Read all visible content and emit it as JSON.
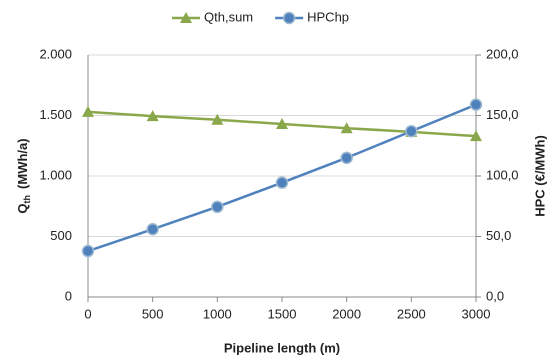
{
  "chart_data": {
    "type": "line",
    "xlabel": "Pipeline length (m)",
    "ylabel": {
      "symbol": "Q",
      "subscript": "th",
      "unit": "(MWh/a)"
    },
    "y2label": "HPC (€/MWh)",
    "x": [
      0,
      500,
      1000,
      1500,
      2000,
      2500,
      3000
    ],
    "xlim": [
      0,
      3000
    ],
    "xticks": [
      0,
      500,
      1000,
      1500,
      2000,
      2500,
      3000
    ],
    "ylim": [
      0,
      2000
    ],
    "yticks": [
      0,
      500,
      {
        "value": 1000,
        "label": "1.000"
      },
      {
        "value": 1500,
        "label": "1.500"
      },
      {
        "value": 2000,
        "label": "2.000"
      }
    ],
    "y2lim": [
      0,
      200
    ],
    "y2ticks": [
      {
        "value": 0,
        "label": "0,0"
      },
      {
        "value": 50,
        "label": "50,0"
      },
      {
        "value": 100,
        "label": "100,0"
      },
      {
        "value": 150,
        "label": "150,0"
      },
      {
        "value": 200,
        "label": "200,0"
      }
    ],
    "grid": true,
    "legend": "top",
    "series": [
      {
        "name": "Qth,sum",
        "color": "#8aa84b",
        "marker": "triangle",
        "values": [
          1530,
          1495,
          1465,
          1430,
          1395,
          1365,
          1330
        ]
      },
      {
        "name": "HPChp",
        "color": "#4f81bd",
        "marker": "circle",
        "axis": "y2",
        "values": [
          38,
          56,
          74.5,
          94.5,
          115,
          137,
          159
        ]
      }
    ]
  }
}
